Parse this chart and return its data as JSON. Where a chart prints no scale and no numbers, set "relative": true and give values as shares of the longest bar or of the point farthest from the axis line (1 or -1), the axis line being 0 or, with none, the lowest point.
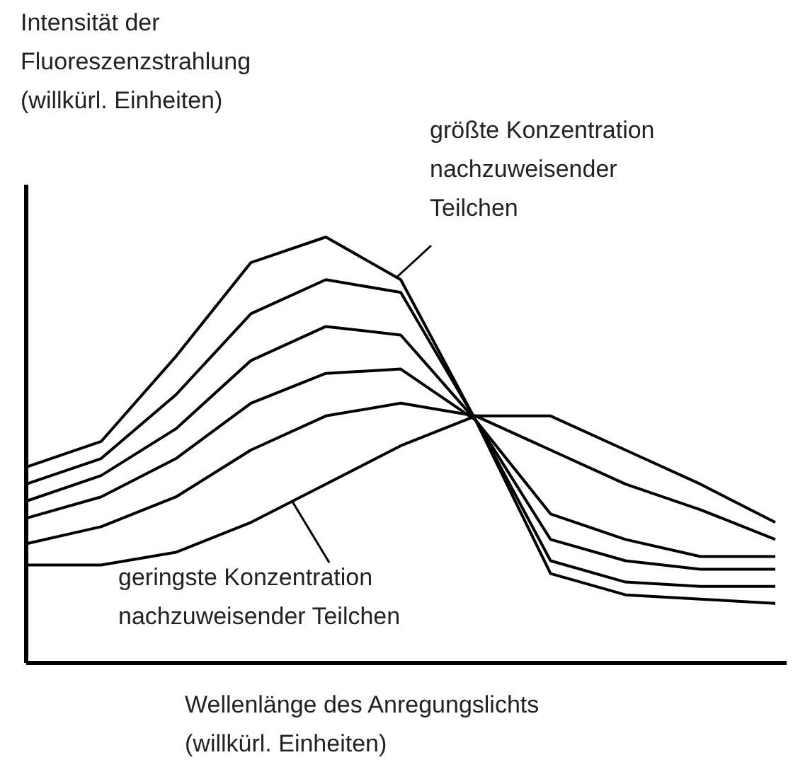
{
  "chart_data": {
    "type": "line",
    "relative": true,
    "xlabel": "Wellenlänge des Anregungslichts\n(willkürl. Einheiten)",
    "categories": [
      null,
      null,
      null,
      null,
      null,
      null,
      null,
      null,
      null,
      null,
      null
    ],
    "series": [
      {
        "color": "#000000",
        "values": [
          0.46,
          0.52,
          0.72,
          0.94,
          1.0,
          0.9,
          0.57,
          0.21,
          0.16,
          0.15,
          0.14
        ]
      },
      {
        "color": "#000000",
        "values": [
          0.42,
          0.48,
          0.63,
          0.82,
          0.9,
          0.87,
          0.57,
          0.24,
          0.19,
          0.18,
          0.18
        ]
      },
      {
        "color": "#000000",
        "values": [
          0.38,
          0.44,
          0.55,
          0.71,
          0.79,
          0.77,
          0.57,
          0.29,
          0.24,
          0.22,
          0.22
        ]
      },
      {
        "color": "#000000",
        "values": [
          0.34,
          0.39,
          0.48,
          0.61,
          0.68,
          0.69,
          0.57,
          0.35,
          0.29,
          0.25,
          0.25
        ]
      },
      {
        "color": "#000000",
        "values": [
          0.28,
          0.32,
          0.39,
          0.5,
          0.58,
          0.61,
          0.58,
          0.5,
          0.42,
          0.36,
          0.29
        ]
      },
      {
        "color": "#000000",
        "values": [
          0.23,
          0.23,
          0.26,
          0.33,
          0.42,
          0.51,
          0.58,
          0.58,
          0.5,
          0.42,
          0.33
        ]
      }
    ],
    "annotations": [
      "Intensität der\nFluoreszenzstrahlung\n(willkürl. Einheiten)",
      "größte Konzentration\nnachzuweisender\nTeilchen",
      "geringste Konzentration\nnachzuweisender Teilchen"
    ]
  }
}
